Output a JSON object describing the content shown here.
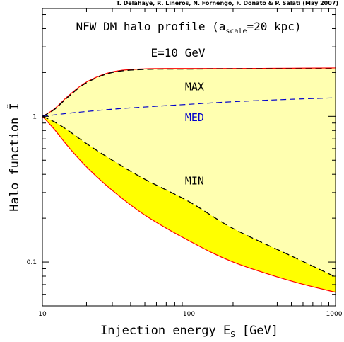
{
  "credit": "T. Delahaye, R. Lineros, N. Fornengo, F. Donato & P. Salati (May 2007)",
  "chart_data": {
    "type": "line",
    "title_main": "NFW DM halo profile (a",
    "title_sub": "scale",
    "title_tail": "=20 kpc)",
    "energy_label": "E=10 GeV",
    "xlabel_main": "Injection energy E",
    "xlabel_sub": "S",
    "xlabel_tail": "[GeV]",
    "ylabel": "Halo function Ĩ",
    "xscale": "log",
    "yscale": "log",
    "xlim": [
      10,
      1000
    ],
    "ylim": [
      0.05,
      5.5
    ],
    "x_ticks": [
      {
        "value": 10,
        "label": "10"
      },
      {
        "value": 100,
        "label": "100"
      },
      {
        "value": 1000,
        "label": "1000"
      }
    ],
    "y_ticks": [
      {
        "value": 0.1,
        "label": "0.1"
      },
      {
        "value": 1,
        "label": "1"
      }
    ],
    "annotations": [
      {
        "text": "MAX",
        "x": 80,
        "y": 1.6,
        "color": "#000000"
      },
      {
        "text": "MED",
        "x": 80,
        "y": 0.98,
        "color": "#0000cc"
      },
      {
        "text": "MIN",
        "x": 80,
        "y": 0.36,
        "color": "#000000"
      }
    ],
    "colors": {
      "outer_band": "#ffffb0",
      "inner_band": "#ffff00",
      "envelope": "#ff0000",
      "max_min_lines": "#000000",
      "med_line": "#0000cc"
    },
    "series": [
      {
        "key": "upper_envelope",
        "style": "solid-red",
        "x": [
          10,
          12,
          15,
          20,
          30,
          50,
          100,
          200,
          500,
          1000
        ],
        "y": [
          1.0,
          1.12,
          1.38,
          1.72,
          2.02,
          2.12,
          2.13,
          2.13,
          2.14,
          2.15
        ]
      },
      {
        "key": "max_curve",
        "style": "dashed-black",
        "x": [
          10,
          12,
          15,
          20,
          30,
          50,
          100,
          200,
          500,
          1000
        ],
        "y": [
          1.0,
          1.11,
          1.36,
          1.7,
          2.0,
          2.1,
          2.11,
          2.12,
          2.12,
          2.12
        ]
      },
      {
        "key": "med_curve",
        "style": "dashed-blue",
        "x": [
          10,
          15,
          20,
          30,
          50,
          100,
          200,
          500,
          1000
        ],
        "y": [
          1.0,
          1.05,
          1.08,
          1.12,
          1.16,
          1.21,
          1.26,
          1.31,
          1.34
        ]
      },
      {
        "key": "min_curve",
        "style": "dashed-black",
        "x": [
          10,
          12,
          15,
          20,
          30,
          50,
          100,
          200,
          500,
          1000
        ],
        "y": [
          1.0,
          0.92,
          0.8,
          0.65,
          0.5,
          0.37,
          0.26,
          0.17,
          0.11,
          0.079
        ]
      },
      {
        "key": "lower_envelope",
        "style": "solid-red",
        "x": [
          10,
          12,
          15,
          20,
          30,
          50,
          100,
          200,
          500,
          1000
        ],
        "y": [
          1.0,
          0.82,
          0.62,
          0.45,
          0.31,
          0.21,
          0.14,
          0.1,
          0.074,
          0.062
        ]
      }
    ]
  }
}
